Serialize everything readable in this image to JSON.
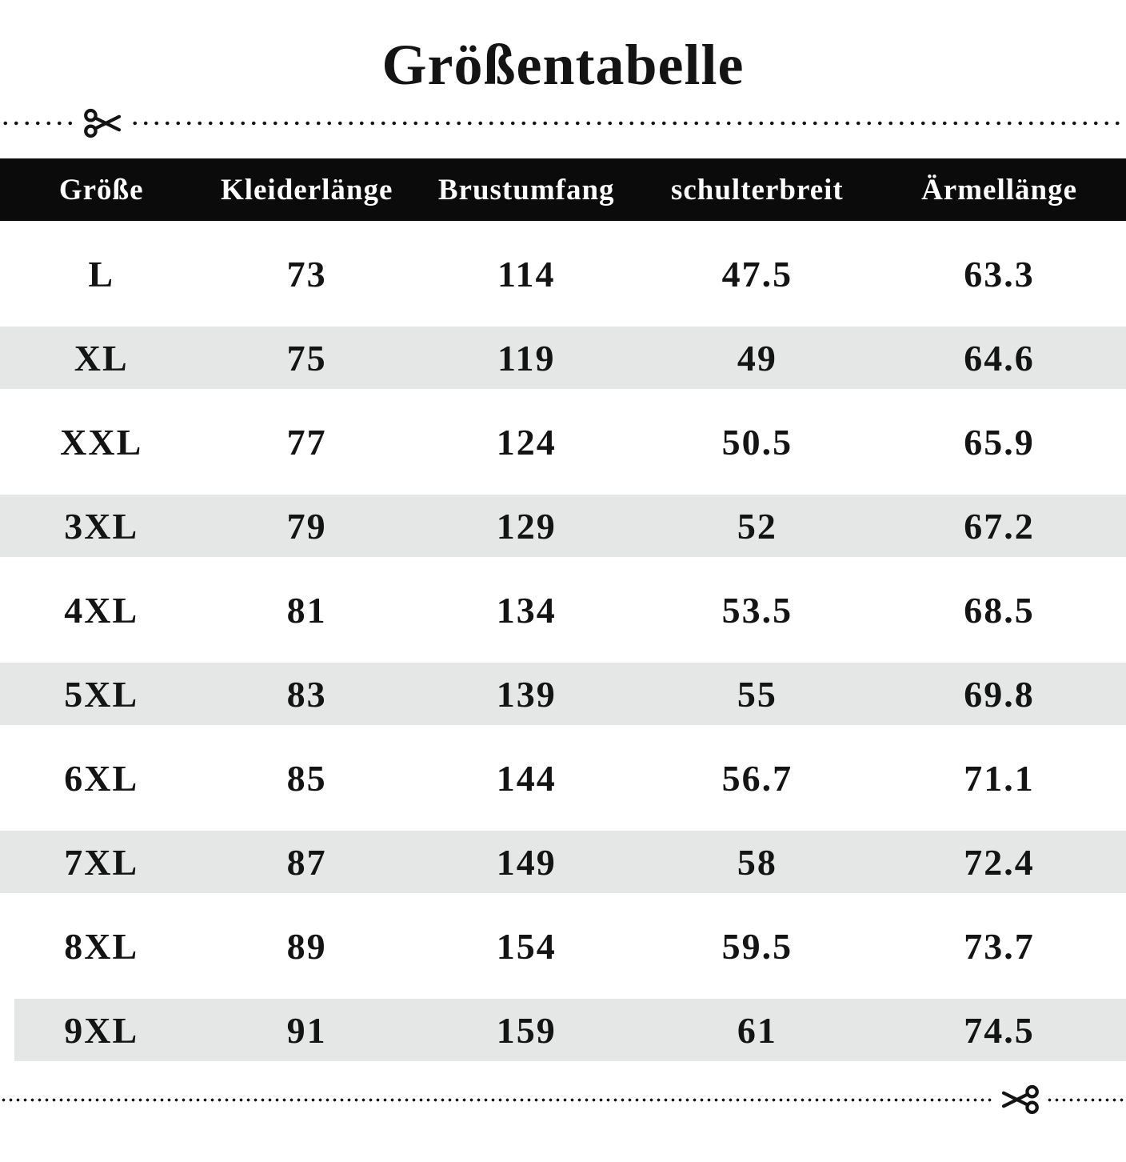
{
  "title": "Größentabelle",
  "table": {
    "headers": [
      "Größe",
      "Kleiderlänge",
      "Brustumfang",
      "schulterbreit",
      "Ärmellänge"
    ],
    "rows": [
      [
        "L",
        "73",
        "114",
        "47.5",
        "63.3"
      ],
      [
        "XL",
        "75",
        "119",
        "49",
        "64.6"
      ],
      [
        "XXL",
        "77",
        "124",
        "50.5",
        "65.9"
      ],
      [
        "3XL",
        "79",
        "129",
        "52",
        "67.2"
      ],
      [
        "4XL",
        "81",
        "134",
        "53.5",
        "68.5"
      ],
      [
        "5XL",
        "83",
        "139",
        "55",
        "69.8"
      ],
      [
        "6XL",
        "85",
        "144",
        "56.7",
        "71.1"
      ],
      [
        "7XL",
        "87",
        "149",
        "58",
        "72.4"
      ],
      [
        "8XL",
        "89",
        "154",
        "59.5",
        "73.7"
      ],
      [
        "9XL",
        "91",
        "159",
        "61",
        "74.5"
      ]
    ]
  },
  "icons": {
    "cut_line_top": "scissors-right-icon",
    "cut_line_bottom": "scissors-left-icon"
  },
  "colors": {
    "header_bg": "#0b0b0b",
    "header_text": "#ffffff",
    "stripe": "#e5e6e6",
    "text": "#141414",
    "dots": "#161616"
  }
}
